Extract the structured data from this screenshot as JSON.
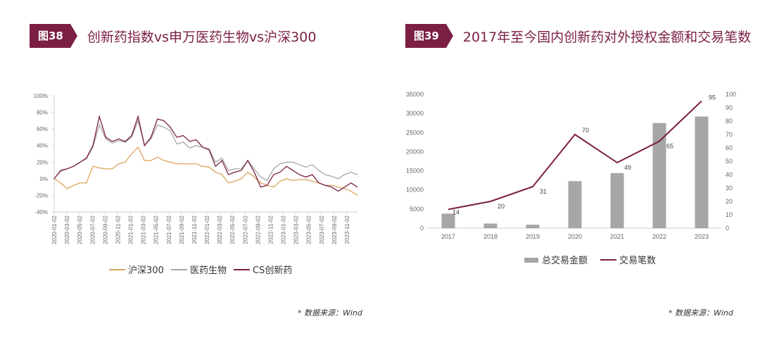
{
  "figure38": {
    "badge": "图38",
    "title": "创新药指数vs申万医药生物vs沪深300",
    "source": "* 数据来源：Wind"
  },
  "figure39": {
    "badge": "图39",
    "title": "2017年至今国内创新药对外授权金额和交易笔数",
    "source": "* 数据来源：Wind"
  },
  "chart_data": [
    {
      "type": "line",
      "ylim": [
        -40,
        100
      ],
      "yticks": [
        "100%",
        "80%",
        "60%",
        "40%",
        "20%",
        "0%",
        "-20%",
        "-40%"
      ],
      "ytick_values": [
        100,
        80,
        60,
        40,
        20,
        0,
        -20,
        -40
      ],
      "xtick_labels": [
        "2020-01-02",
        "2020-03-02",
        "2020-05-02",
        "2020-07-02",
        "2020-09-02",
        "2020-11-02",
        "2021-01-02",
        "2021-03-02",
        "2021-05-02",
        "2021-07-02",
        "2021-09-02",
        "2021-11-02",
        "2022-01-02",
        "2022-03-02",
        "2022-05-02",
        "2022-07-02",
        "2022-09-02",
        "2022-11-02",
        "2023-01-02",
        "2023-03-02",
        "2023-05-02",
        "2023-07-02",
        "2023-09-02",
        "2023-11-02"
      ],
      "x_note": "monthly values Jan 2020 - Dec 2023, percent",
      "legend": "bottom",
      "series": [
        {
          "name": "沪深300",
          "color": "#d9a45a",
          "values": [
            0,
            -5,
            -12,
            -8,
            -5,
            -5,
            15,
            13,
            12,
            12,
            18,
            20,
            30,
            38,
            22,
            22,
            26,
            22,
            20,
            18,
            18,
            18,
            18,
            15,
            14,
            8,
            5,
            -5,
            -3,
            0,
            8,
            2,
            -5,
            -8,
            -10,
            -3,
            0,
            -2,
            -1,
            -1,
            -3,
            -5,
            -8,
            -8,
            -10,
            -12,
            -15,
            -20
          ]
        },
        {
          "name": "医药生物",
          "color": "#a6a6a6",
          "values": [
            0,
            9,
            12,
            15,
            20,
            24,
            38,
            65,
            48,
            43,
            46,
            44,
            50,
            70,
            40,
            48,
            65,
            62,
            58,
            42,
            44,
            37,
            40,
            38,
            36,
            20,
            25,
            10,
            12,
            12,
            22,
            12,
            2,
            -2,
            12,
            18,
            20,
            20,
            17,
            14,
            17,
            10,
            5,
            3,
            0,
            5,
            8,
            5
          ]
        },
        {
          "name": "CS创新药",
          "color": "#7b1f45",
          "values": [
            0,
            10,
            12,
            15,
            20,
            25,
            40,
            75,
            50,
            45,
            48,
            45,
            52,
            75,
            40,
            50,
            72,
            70,
            62,
            50,
            52,
            45,
            47,
            38,
            35,
            15,
            22,
            5,
            8,
            10,
            22,
            8,
            -10,
            -8,
            5,
            8,
            15,
            10,
            5,
            2,
            5,
            -5,
            -8,
            -10,
            -15,
            -10,
            -5,
            -10
          ]
        }
      ]
    },
    {
      "type": "bar+line",
      "categories": [
        "2017",
        "2018",
        "2019",
        "2020",
        "2021",
        "2022",
        "2023"
      ],
      "left_ylim": [
        0,
        35000
      ],
      "left_yticks": [
        "0",
        "5000",
        "10000",
        "15000",
        "20000",
        "25000",
        "30000",
        "35000"
      ],
      "right_ylim": [
        0,
        100
      ],
      "right_yticks": [
        "0",
        "10",
        "20",
        "30",
        "40",
        "50",
        "60",
        "70",
        "80",
        "90",
        "100"
      ],
      "legend": "bottom",
      "series": [
        {
          "name": "总交易金额",
          "type": "bar",
          "axis": "left",
          "color": "#a6a6a6",
          "values": [
            3800,
            1200,
            900,
            12300,
            14400,
            27500,
            29200
          ]
        },
        {
          "name": "交易笔数",
          "type": "line",
          "axis": "right",
          "color": "#7b1f45",
          "values": [
            14,
            20,
            31,
            70,
            49,
            65,
            95
          ],
          "labels": [
            "14",
            "20",
            "31",
            "70",
            "49",
            "65",
            "95"
          ]
        }
      ]
    }
  ]
}
